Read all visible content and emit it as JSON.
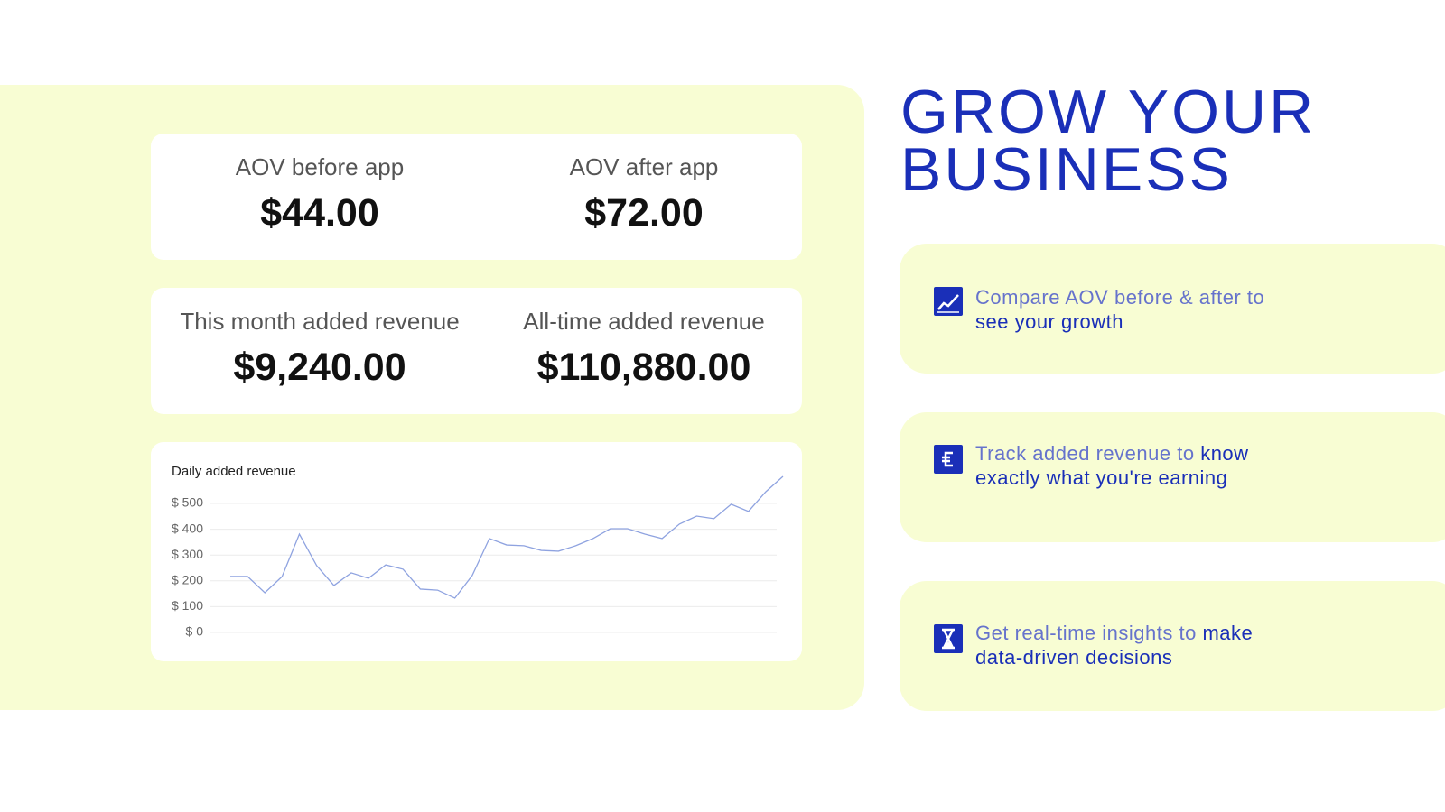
{
  "stats": [
    {
      "label": "AOV before app",
      "value": "$44.00"
    },
    {
      "label": "AOV after app",
      "value": "$72.00"
    },
    {
      "label": "This month added revenue",
      "value": "$9,240.00"
    },
    {
      "label": "All-time added revenue",
      "value": "$110,880.00"
    }
  ],
  "chart_data": {
    "type": "line",
    "title": "Daily added revenue",
    "series": [
      {
        "color": "#8fa3e0",
        "values": [
          217,
          217,
          154,
          217,
          381,
          259,
          182,
          231,
          210,
          262,
          245,
          168,
          164,
          133,
          220,
          364,
          339,
          336,
          318,
          315,
          336,
          364,
          402,
          402,
          381,
          364,
          420,
          451,
          441,
          497,
          469,
          545,
          605
        ]
      }
    ],
    "ylim": [
      0,
      500
    ],
    "yticks": [
      {
        "value": 0,
        "label": "$ 0"
      },
      {
        "value": 100,
        "label": "$ 100"
      },
      {
        "value": 200,
        "label": "$ 200"
      },
      {
        "value": 300,
        "label": "$ 300"
      },
      {
        "value": 400,
        "label": "$ 400"
      },
      {
        "value": 500,
        "label": "$ 500"
      }
    ],
    "grid": true
  },
  "headline": [
    "GROW YOUR",
    "BUSINESS"
  ],
  "features": [
    {
      "text": "Compare AOV before & after to",
      "highlight": "see your growth"
    },
    {
      "text": "Track added revenue to",
      "highlight": "know exactly what you're earning"
    },
    {
      "text": "Get real-time insights to",
      "highlight": "make data-driven decisions"
    }
  ]
}
